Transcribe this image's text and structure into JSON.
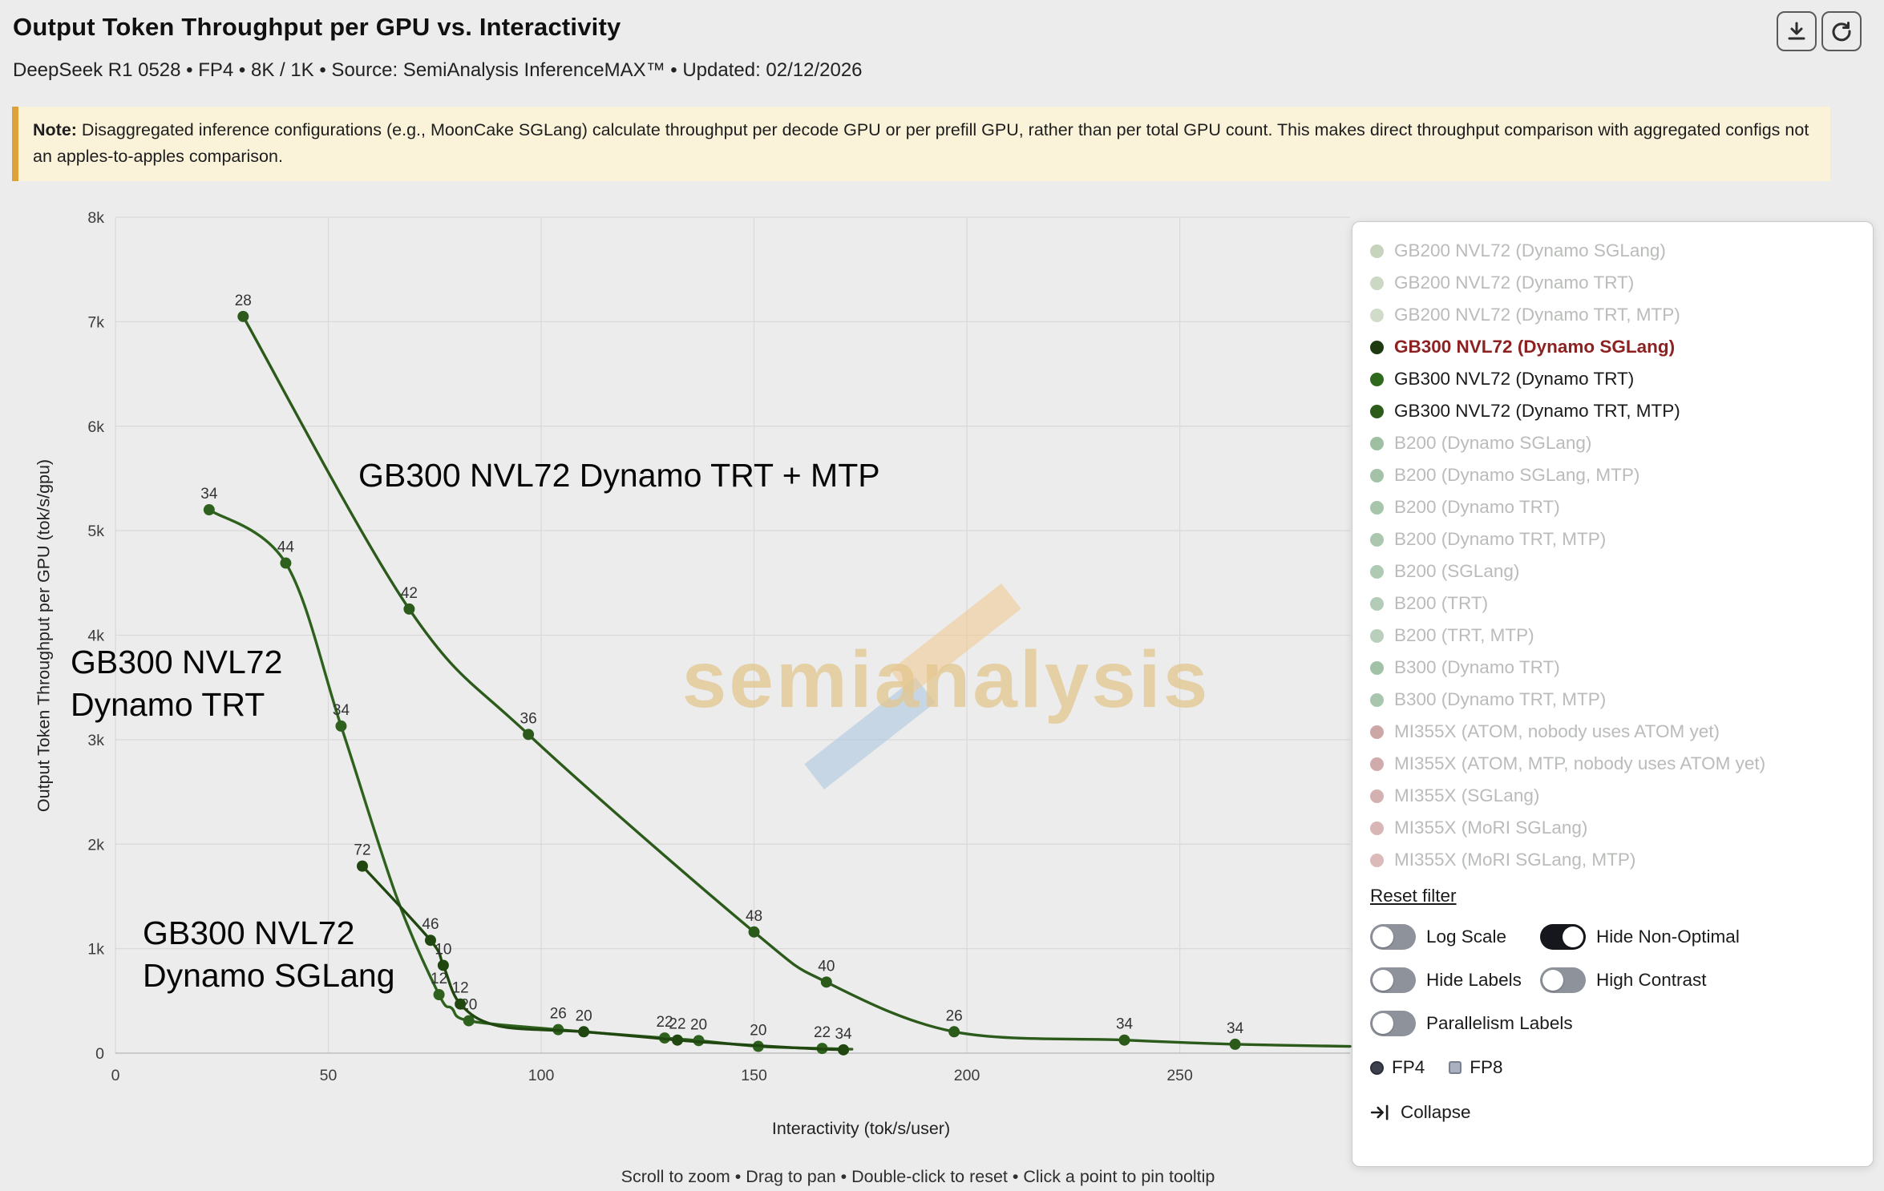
{
  "header": {
    "title": "Output Token Throughput per GPU vs. Interactivity",
    "subtitle": "DeepSeek R1 0528 • FP4 • 8K / 1K • Source: SemiAnalysis InferenceMAX™ • Updated: 02/12/2026",
    "buttons": [
      {
        "name": "download",
        "icon": "download-icon"
      },
      {
        "name": "reset-view",
        "icon": "reset-icon"
      }
    ]
  },
  "note": {
    "label": "Note:",
    "text": " Disaggregated inference configurations (e.g., MoonCake SGLang) calculate throughput per decode GPU or per prefill GPU, rather than per total GPU count. This makes direct throughput comparison with aggregated configs not an apples-to-apples comparison.",
    "border_color": "#dfa13a",
    "background": "#faf3da"
  },
  "watermark": {
    "text": "semianalysis",
    "text_color": "#e3c68c",
    "logo_colors": [
      "#a9c4e0",
      "#f0c98c"
    ]
  },
  "annotations": [
    {
      "lines": [
        "GB300 NVL72 Dynamo TRT + MTP"
      ]
    },
    {
      "lines": [
        "GB300 NVL72",
        "Dynamo TRT"
      ]
    },
    {
      "lines": [
        "GB300 NVL72",
        "Dynamo SGLang"
      ]
    }
  ],
  "chart_data": {
    "type": "line",
    "title": "Output Token Throughput per GPU vs. Interactivity",
    "xlabel": "Interactivity (tok/s/user)",
    "ylabel": "Output Token Throughput per GPU (tok/s/gpu)",
    "xlim": [
      0,
      290
    ],
    "ylim": [
      0,
      8000
    ],
    "xticks": [
      0,
      50,
      100,
      150,
      200,
      250
    ],
    "yticks": [
      0,
      1000,
      2000,
      3000,
      4000,
      5000,
      6000,
      7000,
      8000
    ],
    "ytick_labels": [
      "0",
      "1k",
      "2k",
      "3k",
      "4k",
      "5k",
      "6k",
      "7k",
      "8k"
    ],
    "grid": true,
    "legend_position": "right-overlay",
    "series": [
      {
        "name": "GB300 NVL72 (Dynamo TRT, MTP)",
        "color": "#2c5a1b",
        "x": [
          30,
          69,
          97,
          150,
          167,
          197,
          237,
          263,
          290
        ],
        "y": [
          7050,
          4250,
          3050,
          1160,
          680,
          205,
          125,
          85,
          65
        ],
        "point_labels": [
          "28",
          "42",
          "36",
          "48",
          "40",
          "26",
          "34",
          "34",
          null
        ]
      },
      {
        "name": "GB300 NVL72 (Dynamo TRT)",
        "color": "#2e611d",
        "x": [
          22,
          40,
          53,
          66,
          76,
          79,
          83,
          104,
          129,
          137,
          151,
          166,
          173
        ],
        "y": [
          5200,
          4690,
          3130,
          1500,
          560,
          430,
          310,
          225,
          145,
          120,
          65,
          45,
          38
        ],
        "point_labels": [
          "34",
          "44",
          "34",
          null,
          "12",
          null,
          "20",
          "26",
          "22",
          "20",
          "20",
          "22",
          null
        ]
      },
      {
        "name": "GB300 NVL72 (Dynamo SGLang)",
        "color": "#20470f",
        "x": [
          58,
          74,
          77,
          81,
          90,
          110,
          132,
          140,
          160,
          171
        ],
        "y": [
          1790,
          1080,
          840,
          470,
          260,
          205,
          125,
          100,
          50,
          32
        ],
        "point_labels": [
          "72",
          "46",
          "10",
          "12",
          null,
          "20",
          "22",
          null,
          null,
          "34"
        ]
      }
    ]
  },
  "legend": {
    "entries": [
      {
        "label": "GB200 NVL72 (Dynamo SGLang)",
        "dot_color": "#c6d4bd",
        "text_color": "#b9bcb9",
        "bold": false,
        "active": false
      },
      {
        "label": "GB200 NVL72 (Dynamo TRT)",
        "dot_color": "#cbd8c3",
        "text_color": "#b9bcb9",
        "bold": false,
        "active": false
      },
      {
        "label": "GB200 NVL72 (Dynamo TRT, MTP)",
        "dot_color": "#d0dcc9",
        "text_color": "#b9bcb9",
        "bold": false,
        "active": false
      },
      {
        "label": "GB300 NVL72 (Dynamo SGLang)",
        "dot_color": "#1d3a10",
        "text_color": "#8d2020",
        "bold": true,
        "active": true
      },
      {
        "label": "GB300 NVL72 (Dynamo TRT)",
        "dot_color": "#2e6a1c",
        "text_color": "#1b1b1b",
        "bold": false,
        "active": true
      },
      {
        "label": "GB300 NVL72 (Dynamo TRT, MTP)",
        "dot_color": "#2c5c1a",
        "text_color": "#1b1b1b",
        "bold": false,
        "active": true
      },
      {
        "label": "B200 (Dynamo SGLang)",
        "dot_color": "#9fbfa3",
        "text_color": "#b9bcb9",
        "bold": false,
        "active": false
      },
      {
        "label": "B200 (Dynamo SGLang, MTP)",
        "dot_color": "#a3c2a7",
        "text_color": "#b9bcb9",
        "bold": false,
        "active": false
      },
      {
        "label": "B200 (Dynamo TRT)",
        "dot_color": "#a7c5ab",
        "text_color": "#b9bcb9",
        "bold": false,
        "active": false
      },
      {
        "label": "B200 (Dynamo TRT, MTP)",
        "dot_color": "#abc7af",
        "text_color": "#b9bcb9",
        "bold": false,
        "active": false
      },
      {
        "label": "B200 (SGLang)",
        "dot_color": "#afcab3",
        "text_color": "#b9bcb9",
        "bold": false,
        "active": false
      },
      {
        "label": "B200 (TRT)",
        "dot_color": "#b3ccb7",
        "text_color": "#b9bcb9",
        "bold": false,
        "active": false
      },
      {
        "label": "B200 (TRT, MTP)",
        "dot_color": "#b7cfbb",
        "text_color": "#b9bcb9",
        "bold": false,
        "active": false
      },
      {
        "label": "B300 (Dynamo TRT)",
        "dot_color": "#a2c2a8",
        "text_color": "#b9bcb9",
        "bold": false,
        "active": false
      },
      {
        "label": "B300 (Dynamo TRT, MTP)",
        "dot_color": "#a8c6ae",
        "text_color": "#b9bcb9",
        "bold": false,
        "active": false
      },
      {
        "label": "MI355X (ATOM, nobody uses ATOM yet)",
        "dot_color": "#cda6a6",
        "text_color": "#b9bcb9",
        "bold": false,
        "active": false
      },
      {
        "label": "MI355X (ATOM, MTP, nobody uses ATOM yet)",
        "dot_color": "#d1abab",
        "text_color": "#b9bcb9",
        "bold": false,
        "active": false
      },
      {
        "label": "MI355X (SGLang)",
        "dot_color": "#d5b0b0",
        "text_color": "#b9bcb9",
        "bold": false,
        "active": false
      },
      {
        "label": "MI355X (MoRI SGLang)",
        "dot_color": "#d9b5b5",
        "text_color": "#b9bcb9",
        "bold": false,
        "active": false
      },
      {
        "label": "MI355X (MoRI SGLang, MTP)",
        "dot_color": "#ddbaba",
        "text_color": "#b9bcb9",
        "bold": false,
        "active": false
      }
    ],
    "reset_filter_label": "Reset filter",
    "toggles": [
      {
        "label": "Log Scale",
        "on": false
      },
      {
        "label": "Hide Non-Optimal",
        "on": true
      },
      {
        "label": "Hide Labels",
        "on": false
      },
      {
        "label": "High Contrast",
        "on": false
      },
      {
        "label": "Parallelism Labels",
        "on": false
      }
    ],
    "toggle_rows": [
      [
        0,
        1
      ],
      [
        2,
        3
      ],
      [
        4
      ]
    ],
    "precision": [
      {
        "label": "FP4",
        "marker": "circle"
      },
      {
        "label": "FP8",
        "marker": "square"
      }
    ],
    "collapse_label": "Collapse"
  },
  "footer": {
    "hint": "Scroll to zoom • Drag to pan • Double-click to reset • Click a point to pin tooltip"
  }
}
